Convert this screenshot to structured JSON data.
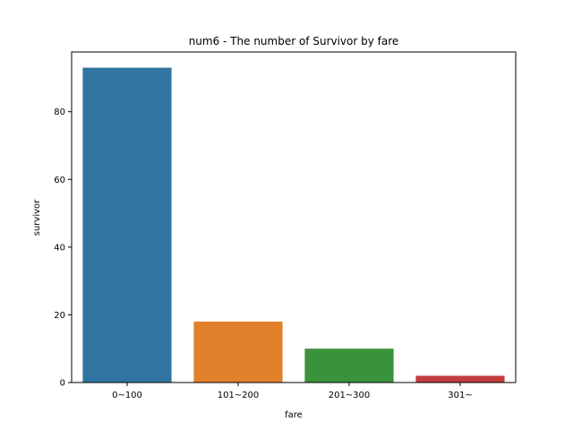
{
  "chart_data": {
    "type": "bar",
    "title": "num6 - The number of Survivor by fare",
    "xlabel": "fare",
    "ylabel": "survivor",
    "categories": [
      "0~100",
      "101~200",
      "201~300",
      "301~"
    ],
    "values": [
      93,
      18,
      10,
      2
    ],
    "colors": [
      "#3274a1",
      "#e1812c",
      "#3a923a",
      "#c03d3e"
    ],
    "ylim": [
      0,
      97.65
    ],
    "yticks": [
      0,
      20,
      40,
      60,
      80
    ],
    "grid": false,
    "legend": "none"
  }
}
